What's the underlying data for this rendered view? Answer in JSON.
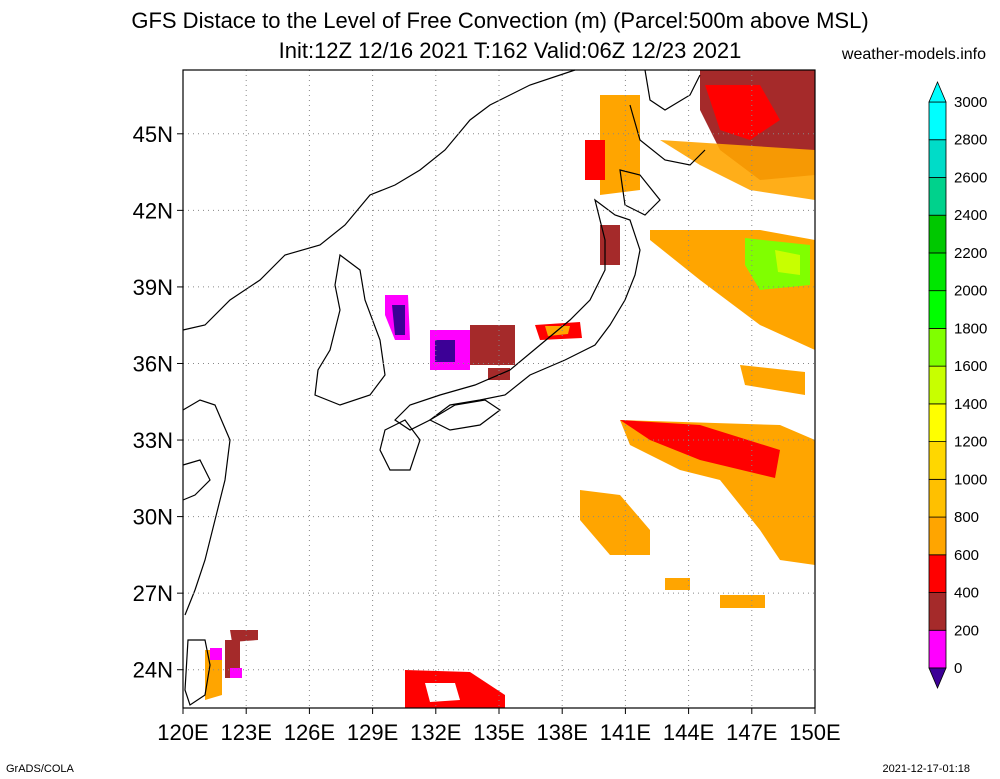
{
  "header": {
    "title_line1": "GFS Distace to the Level of Free Convection (m) (Parcel:500m above MSL)",
    "title_line2": "Init:12Z 12/16 2021 T:162 Valid:06Z 12/23 2021",
    "site": "weather-models.info"
  },
  "footer": {
    "credit": "GrADS/COLA",
    "timestamp": "2021-12-17-01:18"
  },
  "map": {
    "lon_range": [
      120,
      150
    ],
    "lat_range": [
      22.5,
      47.5
    ],
    "lon_ticks": [
      "120E",
      "123E",
      "126E",
      "129E",
      "132E",
      "135E",
      "138E",
      "141E",
      "144E",
      "147E",
      "150E"
    ],
    "lat_ticks": [
      "24N",
      "27N",
      "30N",
      "33N",
      "36N",
      "39N",
      "42N",
      "45N"
    ]
  },
  "colorbar": {
    "levels": [
      "0",
      "200",
      "400",
      "600",
      "800",
      "1000",
      "1200",
      "1400",
      "1600",
      "1800",
      "2000",
      "2200",
      "2400",
      "2600",
      "2800",
      "3000"
    ],
    "colors": [
      "#3c0096",
      "#ff00ff",
      "#a52a2a",
      "#ff0000",
      "#ffa500",
      "#ffc000",
      "#ffd700",
      "#ffff00",
      "#c8ff00",
      "#80ff00",
      "#00ff00",
      "#00e600",
      "#00c800",
      "#00d28c",
      "#00dcc8",
      "#00ffff",
      "#00ffff"
    ]
  }
}
